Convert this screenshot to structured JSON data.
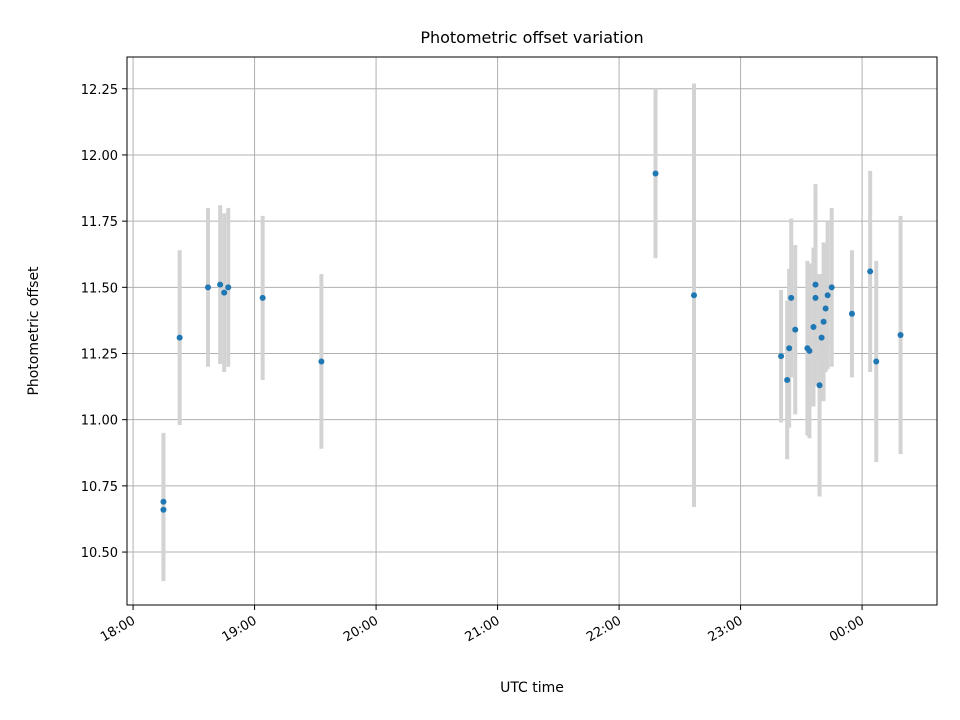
{
  "chart_data": {
    "type": "scatter",
    "title": "Photometric offset variation",
    "xlabel": "UTC time",
    "ylabel": "Photometric offset",
    "x_axis": {
      "kind": "time",
      "range": [
        "17:57",
        "00:37"
      ],
      "ticks": [
        "18:00",
        "19:00",
        "20:00",
        "21:00",
        "22:00",
        "23:00",
        "00:00"
      ]
    },
    "y_axis": {
      "range": [
        10.3,
        12.37
      ],
      "ticks": [
        "10.50",
        "10.75",
        "11.00",
        "11.25",
        "11.50",
        "11.75",
        "12.00",
        "12.25"
      ]
    },
    "grid": true,
    "colors": {
      "marker": "#1f77b4",
      "errorbar": "#d3d3d3"
    },
    "points": [
      {
        "t": "18:15",
        "y": 10.69,
        "err": 0.26
      },
      {
        "t": "18:15",
        "y": 10.66,
        "err": 0.27
      },
      {
        "t": "18:23",
        "y": 11.31,
        "err": 0.33
      },
      {
        "t": "18:37",
        "y": 11.5,
        "err": 0.3
      },
      {
        "t": "18:43",
        "y": 11.51,
        "err": 0.3
      },
      {
        "t": "18:45",
        "y": 11.48,
        "err": 0.3
      },
      {
        "t": "18:47",
        "y": 11.5,
        "err": 0.3
      },
      {
        "t": "19:04",
        "y": 11.46,
        "err": 0.31
      },
      {
        "t": "19:33",
        "y": 11.22,
        "err": 0.33
      },
      {
        "t": "22:18",
        "y": 11.93,
        "err": 0.32
      },
      {
        "t": "22:37",
        "y": 11.47,
        "err": 0.8
      },
      {
        "t": "23:20",
        "y": 11.24,
        "err": 0.25
      },
      {
        "t": "23:23",
        "y": 11.15,
        "err": 0.3
      },
      {
        "t": "23:24",
        "y": 11.27,
        "err": 0.3
      },
      {
        "t": "23:25",
        "y": 11.46,
        "err": 0.3
      },
      {
        "t": "23:27",
        "y": 11.34,
        "err": 0.32
      },
      {
        "t": "23:33",
        "y": 11.27,
        "err": 0.33
      },
      {
        "t": "23:34",
        "y": 11.26,
        "err": 0.33
      },
      {
        "t": "23:36",
        "y": 11.35,
        "err": 0.3
      },
      {
        "t": "23:37",
        "y": 11.51,
        "err": 0.38
      },
      {
        "t": "23:37",
        "y": 11.46,
        "err": 0.3
      },
      {
        "t": "23:39",
        "y": 11.13,
        "err": 0.42
      },
      {
        "t": "23:40",
        "y": 11.31,
        "err": 0.24
      },
      {
        "t": "23:41",
        "y": 11.37,
        "err": 0.3
      },
      {
        "t": "23:42",
        "y": 11.42,
        "err": 0.24
      },
      {
        "t": "23:43",
        "y": 11.47,
        "err": 0.28
      },
      {
        "t": "23:45",
        "y": 11.5,
        "err": 0.3
      },
      {
        "t": "23:55",
        "y": 11.4,
        "err": 0.24
      },
      {
        "t": "00:04",
        "y": 11.56,
        "err": 0.38
      },
      {
        "t": "00:07",
        "y": 11.22,
        "err": 0.38
      },
      {
        "t": "00:19",
        "y": 11.32,
        "err": 0.45
      }
    ]
  }
}
